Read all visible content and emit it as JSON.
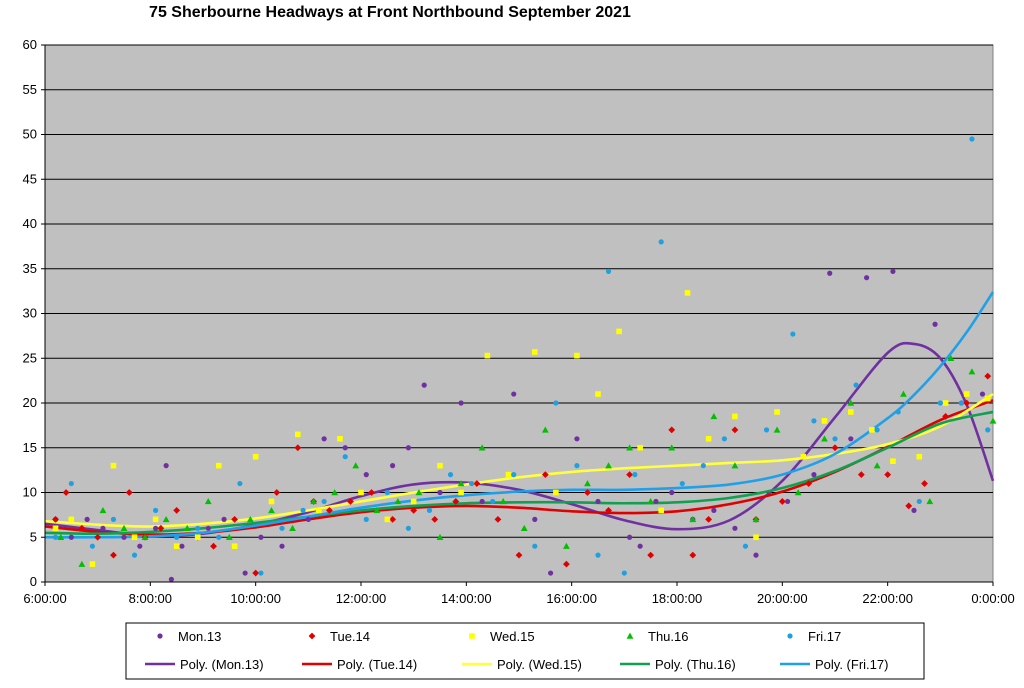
{
  "chart_data": {
    "type": "scatter",
    "title": "75 Sherbourne Headways at Front Northbound September 2021",
    "xlabel": "",
    "ylabel": "",
    "x_unit": "hours",
    "xlim": [
      6,
      24
    ],
    "ylim": [
      0,
      60
    ],
    "x_ticks": [
      {
        "value": 6,
        "label": "6:00:00"
      },
      {
        "value": 8,
        "label": "8:00:00"
      },
      {
        "value": 10,
        "label": "10:00:00"
      },
      {
        "value": 12,
        "label": "12:00:00"
      },
      {
        "value": 14,
        "label": "14:00:00"
      },
      {
        "value": 16,
        "label": "16:00:00"
      },
      {
        "value": 18,
        "label": "18:00:00"
      },
      {
        "value": 20,
        "label": "20:00:00"
      },
      {
        "value": 22,
        "label": "22:00:00"
      },
      {
        "value": 24,
        "label": "0:00:00"
      }
    ],
    "y_ticks": [
      0,
      5,
      10,
      15,
      20,
      25,
      30,
      35,
      40,
      45,
      50,
      55,
      60
    ],
    "grid": "horizontal",
    "plot_background": "#c0c0c0",
    "legend_position": "bottom",
    "series": [
      {
        "name": "Mon.13",
        "marker": "circle",
        "color": "#7030a0",
        "points": [
          [
            6.2,
            7
          ],
          [
            6.5,
            5
          ],
          [
            6.8,
            7
          ],
          [
            7.1,
            6
          ],
          [
            7.5,
            5
          ],
          [
            7.8,
            4
          ],
          [
            8.1,
            6
          ],
          [
            8.3,
            13
          ],
          [
            8.4,
            0.3
          ],
          [
            8.6,
            4
          ],
          [
            9.1,
            6
          ],
          [
            9.4,
            7
          ],
          [
            9.8,
            1
          ],
          [
            10.1,
            5
          ],
          [
            10.5,
            4
          ],
          [
            11,
            7
          ],
          [
            11.3,
            16
          ],
          [
            11.7,
            15
          ],
          [
            12.1,
            12
          ],
          [
            12.6,
            13
          ],
          [
            12.9,
            15
          ],
          [
            13.2,
            22
          ],
          [
            13.5,
            10
          ],
          [
            13.9,
            20
          ],
          [
            14.3,
            9
          ],
          [
            14.9,
            21
          ],
          [
            15.3,
            7
          ],
          [
            15.6,
            1
          ],
          [
            16.1,
            16
          ],
          [
            16.5,
            9
          ],
          [
            17.1,
            5
          ],
          [
            17.3,
            4
          ],
          [
            17.6,
            9
          ],
          [
            17.9,
            10
          ],
          [
            18.3,
            7
          ],
          [
            18.7,
            8
          ],
          [
            19.1,
            6
          ],
          [
            19.5,
            3
          ],
          [
            20.1,
            9
          ],
          [
            20.6,
            12
          ],
          [
            20.9,
            34.5
          ],
          [
            21.3,
            16
          ],
          [
            21.6,
            34
          ],
          [
            22.1,
            34.7
          ],
          [
            22.5,
            8
          ],
          [
            22.9,
            28.8
          ],
          [
            23.4,
            20
          ],
          [
            23.8,
            21
          ]
        ]
      },
      {
        "name": "Tue.14",
        "marker": "diamond",
        "color": "#e00000",
        "points": [
          [
            6.2,
            7
          ],
          [
            6.4,
            10
          ],
          [
            6.7,
            6
          ],
          [
            7,
            5
          ],
          [
            7.3,
            3
          ],
          [
            7.6,
            10
          ],
          [
            7.9,
            5
          ],
          [
            8.2,
            6
          ],
          [
            8.5,
            8
          ],
          [
            8.9,
            5
          ],
          [
            9.2,
            4
          ],
          [
            9.6,
            7
          ],
          [
            10,
            1
          ],
          [
            10.4,
            10
          ],
          [
            10.8,
            15
          ],
          [
            11.1,
            9
          ],
          [
            11.4,
            8
          ],
          [
            11.8,
            9
          ],
          [
            12.2,
            10
          ],
          [
            12.6,
            7
          ],
          [
            13,
            8
          ],
          [
            13.4,
            7
          ],
          [
            13.8,
            9
          ],
          [
            14.2,
            11
          ],
          [
            14.6,
            7
          ],
          [
            15,
            3
          ],
          [
            15.5,
            12
          ],
          [
            15.9,
            2
          ],
          [
            16.3,
            10
          ],
          [
            16.7,
            8
          ],
          [
            17.1,
            12
          ],
          [
            17.5,
            3
          ],
          [
            17.9,
            17
          ],
          [
            18.3,
            3
          ],
          [
            18.6,
            7
          ],
          [
            19.1,
            17
          ],
          [
            19.5,
            7
          ],
          [
            20,
            9
          ],
          [
            20.5,
            11
          ],
          [
            21,
            15
          ],
          [
            21.5,
            12
          ],
          [
            22,
            12
          ],
          [
            22.4,
            8.5
          ],
          [
            22.7,
            11
          ],
          [
            23.1,
            18.5
          ],
          [
            23.5,
            20
          ],
          [
            23.9,
            23
          ]
        ]
      },
      {
        "name": "Wed.15",
        "marker": "square",
        "color": "#ffff00",
        "points": [
          [
            6.2,
            6
          ],
          [
            6.5,
            7
          ],
          [
            6.9,
            2
          ],
          [
            7.3,
            13
          ],
          [
            7.7,
            5
          ],
          [
            8.1,
            7
          ],
          [
            8.5,
            4
          ],
          [
            8.9,
            5
          ],
          [
            9.3,
            13
          ],
          [
            9.6,
            4
          ],
          [
            10,
            14
          ],
          [
            10.3,
            9
          ],
          [
            10.8,
            16.5
          ],
          [
            11.2,
            8
          ],
          [
            11.6,
            16
          ],
          [
            12,
            10
          ],
          [
            12.5,
            7
          ],
          [
            13,
            9
          ],
          [
            13.5,
            13
          ],
          [
            13.9,
            10
          ],
          [
            14.4,
            25.3
          ],
          [
            14.8,
            12
          ],
          [
            15.3,
            25.7
          ],
          [
            15.7,
            10
          ],
          [
            16.1,
            25.3
          ],
          [
            16.5,
            21
          ],
          [
            16.9,
            28
          ],
          [
            17.3,
            15
          ],
          [
            17.7,
            8
          ],
          [
            18.2,
            32.3
          ],
          [
            18.6,
            16
          ],
          [
            19.1,
            18.5
          ],
          [
            19.5,
            5
          ],
          [
            19.9,
            19
          ],
          [
            20.4,
            14
          ],
          [
            20.8,
            18
          ],
          [
            21.3,
            19
          ],
          [
            21.7,
            17
          ],
          [
            22.1,
            13.5
          ],
          [
            22.6,
            14
          ],
          [
            23.1,
            20
          ],
          [
            23.5,
            21
          ],
          [
            23.9,
            20.5
          ]
        ]
      },
      {
        "name": "Thu.16",
        "marker": "triangle",
        "color": "#00c000",
        "points": [
          [
            6.3,
            5
          ],
          [
            6.7,
            2
          ],
          [
            7.1,
            8
          ],
          [
            7.5,
            6
          ],
          [
            7.9,
            5
          ],
          [
            8.3,
            7
          ],
          [
            8.7,
            6
          ],
          [
            9.1,
            9
          ],
          [
            9.5,
            5
          ],
          [
            9.9,
            7
          ],
          [
            10.3,
            8
          ],
          [
            10.7,
            6
          ],
          [
            11.1,
            9
          ],
          [
            11.5,
            10
          ],
          [
            11.9,
            13
          ],
          [
            12.3,
            8
          ],
          [
            12.7,
            9
          ],
          [
            13.1,
            10
          ],
          [
            13.5,
            5
          ],
          [
            13.9,
            11
          ],
          [
            14.3,
            15
          ],
          [
            14.7,
            9
          ],
          [
            15.1,
            6
          ],
          [
            15.5,
            17
          ],
          [
            15.9,
            4
          ],
          [
            16.3,
            11
          ],
          [
            16.7,
            13
          ],
          [
            17.1,
            15
          ],
          [
            17.5,
            9
          ],
          [
            17.9,
            15
          ],
          [
            18.3,
            7
          ],
          [
            18.7,
            18.5
          ],
          [
            19.1,
            13
          ],
          [
            19.5,
            7
          ],
          [
            19.9,
            17
          ],
          [
            20.3,
            10
          ],
          [
            20.8,
            16
          ],
          [
            21.3,
            20
          ],
          [
            21.8,
            13
          ],
          [
            22.3,
            21
          ],
          [
            22.8,
            9
          ],
          [
            23.2,
            25
          ],
          [
            23.6,
            23.5
          ],
          [
            24,
            18
          ]
        ]
      },
      {
        "name": "Fri.17",
        "marker": "circle",
        "color": "#1fa0e0",
        "points": [
          [
            6.2,
            5
          ],
          [
            6.5,
            11
          ],
          [
            6.9,
            4
          ],
          [
            7.3,
            7
          ],
          [
            7.7,
            3
          ],
          [
            8.1,
            8
          ],
          [
            8.5,
            5
          ],
          [
            8.9,
            6
          ],
          [
            9.3,
            5
          ],
          [
            9.7,
            11
          ],
          [
            10.1,
            1
          ],
          [
            10.5,
            6
          ],
          [
            10.9,
            8
          ],
          [
            11.3,
            9
          ],
          [
            11.7,
            14
          ],
          [
            12.1,
            7
          ],
          [
            12.5,
            10
          ],
          [
            12.9,
            6
          ],
          [
            13.3,
            8
          ],
          [
            13.7,
            12
          ],
          [
            14.1,
            11
          ],
          [
            14.5,
            9
          ],
          [
            14.9,
            12
          ],
          [
            15.3,
            4
          ],
          [
            15.7,
            20
          ],
          [
            16.1,
            13
          ],
          [
            16.5,
            3
          ],
          [
            16.7,
            34.7
          ],
          [
            17,
            1
          ],
          [
            17.2,
            12
          ],
          [
            17.7,
            38
          ],
          [
            18.1,
            11
          ],
          [
            18.5,
            13
          ],
          [
            18.9,
            16
          ],
          [
            19.3,
            4
          ],
          [
            19.7,
            17
          ],
          [
            20.2,
            27.7
          ],
          [
            20.6,
            18
          ],
          [
            21,
            16
          ],
          [
            21.4,
            22
          ],
          [
            21.8,
            17
          ],
          [
            22.2,
            19
          ],
          [
            22.6,
            9
          ],
          [
            23,
            20
          ],
          [
            23.4,
            20
          ],
          [
            23.6,
            49.5
          ],
          [
            23.9,
            17
          ]
        ]
      }
    ],
    "trendlines": [
      {
        "name": "Poly. (Mon.13)",
        "color": "#7030a0",
        "x": [
          6,
          7,
          8,
          9,
          10,
          11,
          12,
          13,
          14,
          15,
          16,
          17,
          18,
          19,
          20,
          21,
          22,
          22.5,
          23,
          23.5,
          24
        ],
        "y": [
          6.5,
          5.8,
          5.2,
          5.4,
          6.4,
          7.8,
          9.6,
          10.9,
          11.1,
          10.3,
          8.7,
          6.9,
          5.9,
          6.9,
          11.3,
          18.4,
          25.6,
          26.6,
          25.0,
          19.8,
          11.3
        ]
      },
      {
        "name": "Poly. (Tue.14)",
        "color": "#e00000",
        "x": [
          6,
          7,
          8,
          9,
          10,
          11,
          12,
          13,
          14,
          15,
          16,
          17,
          18,
          19,
          20,
          21,
          22,
          23,
          24
        ],
        "y": [
          6.2,
          5.6,
          5.3,
          5.5,
          6.1,
          7.0,
          7.8,
          8.3,
          8.5,
          8.3,
          7.9,
          7.7,
          7.9,
          8.7,
          10.1,
          12.3,
          15.1,
          18.1,
          20.3
        ]
      },
      {
        "name": "Poly. (Wed.15)",
        "color": "#ffff40",
        "x": [
          6,
          7,
          8,
          9,
          10,
          11,
          12,
          13,
          14,
          15,
          16,
          17,
          18,
          19,
          20,
          21,
          22,
          23,
          24
        ],
        "y": [
          6.8,
          6.4,
          6.2,
          6.5,
          7.1,
          8.0,
          9.0,
          10.0,
          10.9,
          11.7,
          12.3,
          12.7,
          13.0,
          13.3,
          13.6,
          14.3,
          15.4,
          17.4,
          21.0
        ]
      },
      {
        "name": "Poly. (Thu.16)",
        "color": "#10a050",
        "x": [
          6,
          7,
          8,
          9,
          10,
          11,
          12,
          13,
          14,
          15,
          16,
          17,
          18,
          19,
          20,
          21,
          22,
          23,
          24
        ],
        "y": [
          5.5,
          5.4,
          5.6,
          6.0,
          6.6,
          7.3,
          8.0,
          8.5,
          8.8,
          8.9,
          8.9,
          8.8,
          8.9,
          9.4,
          10.5,
          12.4,
          15.0,
          17.7,
          19.0
        ]
      },
      {
        "name": "Poly. (Fri.17)",
        "color": "#1fa0e8",
        "x": [
          6,
          7,
          8,
          9,
          10,
          11,
          12,
          13,
          14,
          15,
          16,
          17,
          18,
          19,
          20,
          21,
          22,
          22.5,
          23,
          23.5,
          24
        ],
        "y": [
          5.0,
          5.0,
          5.1,
          5.5,
          6.3,
          7.3,
          8.3,
          9.1,
          9.7,
          10.1,
          10.3,
          10.3,
          10.5,
          10.9,
          12.0,
          14.3,
          18.3,
          20.9,
          24.1,
          27.9,
          32.4
        ]
      }
    ]
  }
}
